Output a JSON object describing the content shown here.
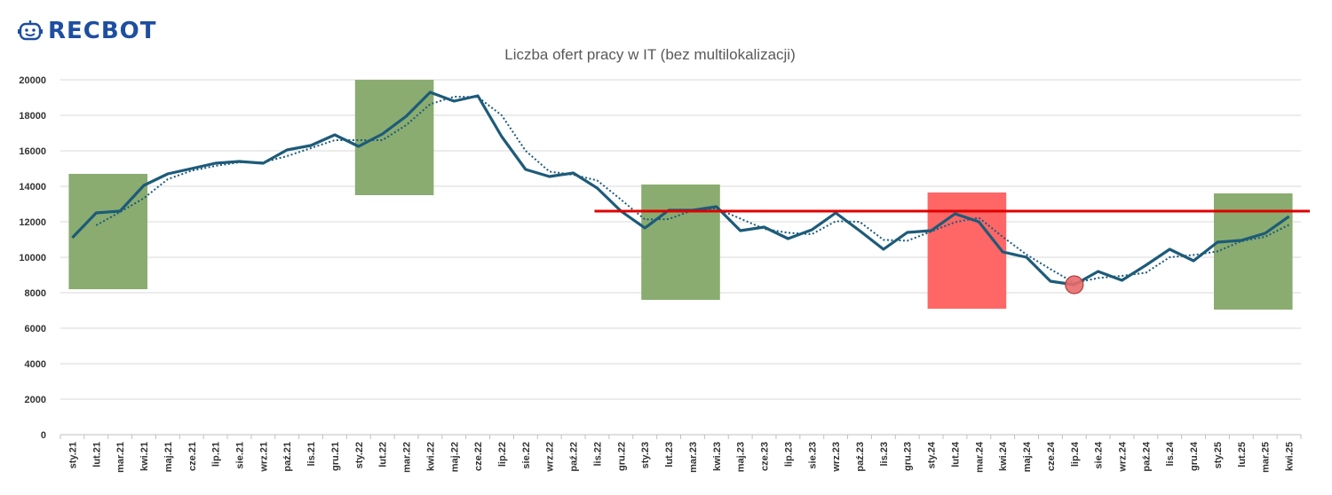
{
  "brand": {
    "name": "RECBOT",
    "logo_icon": "robot-face-icon",
    "color": "#1e4ea0"
  },
  "chart_data": {
    "type": "line",
    "title": "Liczba ofert pracy w IT (bez multilokalizacji)",
    "xlabel": "",
    "ylabel": "",
    "ylim": [
      0,
      20000
    ],
    "yticks": [
      0,
      2000,
      4000,
      6000,
      8000,
      10000,
      12000,
      14000,
      16000,
      18000,
      20000
    ],
    "grid": true,
    "categories": [
      "sty.21",
      "lut.21",
      "mar.21",
      "kwi.21",
      "maj.21",
      "cze.21",
      "lip.21",
      "sie.21",
      "wrz.21",
      "paź.21",
      "lis.21",
      "gru.21",
      "sty.22",
      "lut.22",
      "mar.22",
      "kwi.22",
      "maj.22",
      "cze.22",
      "lip.22",
      "sie.22",
      "wrz.22",
      "paź.22",
      "lis.22",
      "gru.22",
      "sty.23",
      "lut.23",
      "mar.23",
      "kwi.23",
      "maj.23",
      "cze.23",
      "lip.23",
      "sie.23",
      "wrz.23",
      "paź.23",
      "lis.23",
      "gru.23",
      "sty.24",
      "lut.24",
      "mar.24",
      "kwi.24",
      "maj.24",
      "cze.24",
      "lip.24",
      "sie.24",
      "wrz.24",
      "paź.24",
      "lis.24",
      "gru.24",
      "sty.25",
      "lut.25",
      "mar.25",
      "kwi.25"
    ],
    "series": [
      {
        "values": [
          11100,
          12500,
          12600,
          14050,
          14700,
          15000,
          15300,
          15400,
          15300,
          16050,
          16300,
          16900,
          16250,
          16950,
          17950,
          19300,
          18800,
          19100,
          16800,
          14950,
          14550,
          14750,
          13900,
          12600,
          11650,
          12650,
          12650,
          12850,
          11500,
          11700,
          11050,
          11550,
          12500,
          11500,
          10450,
          11400,
          11500,
          12450,
          12000,
          10300,
          10000,
          8650,
          8450,
          9200,
          8700,
          9550,
          10450,
          9800,
          10850,
          10950,
          11350,
          12300
        ],
        "color": "#1d5b79",
        "style": "solid"
      },
      {
        "values": [
          null,
          11800,
          12550,
          13330,
          14400,
          14880,
          15150,
          15350,
          15350,
          15700,
          16150,
          16600,
          16600,
          16600,
          17450,
          18630,
          19050,
          19030,
          18000,
          16000,
          14830,
          14650,
          14330,
          13250,
          12130,
          12150,
          12650,
          12750,
          12180,
          11600,
          11380,
          11300,
          12030,
          12000,
          10980,
          10930,
          11450,
          11980,
          12230,
          11150,
          10150,
          9330,
          8550,
          8830,
          8950,
          9130,
          10000,
          10130,
          10330,
          10900,
          11150,
          11830
        ],
        "color": "#1d5b79",
        "style": "dotted"
      }
    ],
    "reference_line": {
      "value": 12600,
      "from": "lis.22",
      "to": "kwi.25",
      "color": "#e00000"
    },
    "highlight_boxes": [
      {
        "from": "sty.21",
        "to": "kwi.21",
        "y0": 8200,
        "y1": 14700,
        "color": "#8aac70"
      },
      {
        "from": "sty.22",
        "to": "kwi.22",
        "y0": 13500,
        "y1": 20000,
        "color": "#8aac70"
      },
      {
        "from": "sty.23",
        "to": "kwi.23",
        "y0": 7600,
        "y1": 14100,
        "color": "#8aac70"
      },
      {
        "from": "sty.24",
        "to": "kwi.24",
        "y0": 7100,
        "y1": 13650,
        "color": "#ff6666"
      },
      {
        "from": "sty.25",
        "to": "kwi.25",
        "y0": 7050,
        "y1": 13600,
        "color": "#8aac70"
      }
    ],
    "marker": {
      "at": "lip.24",
      "value": 8450,
      "color": "#e86a6a"
    }
  }
}
